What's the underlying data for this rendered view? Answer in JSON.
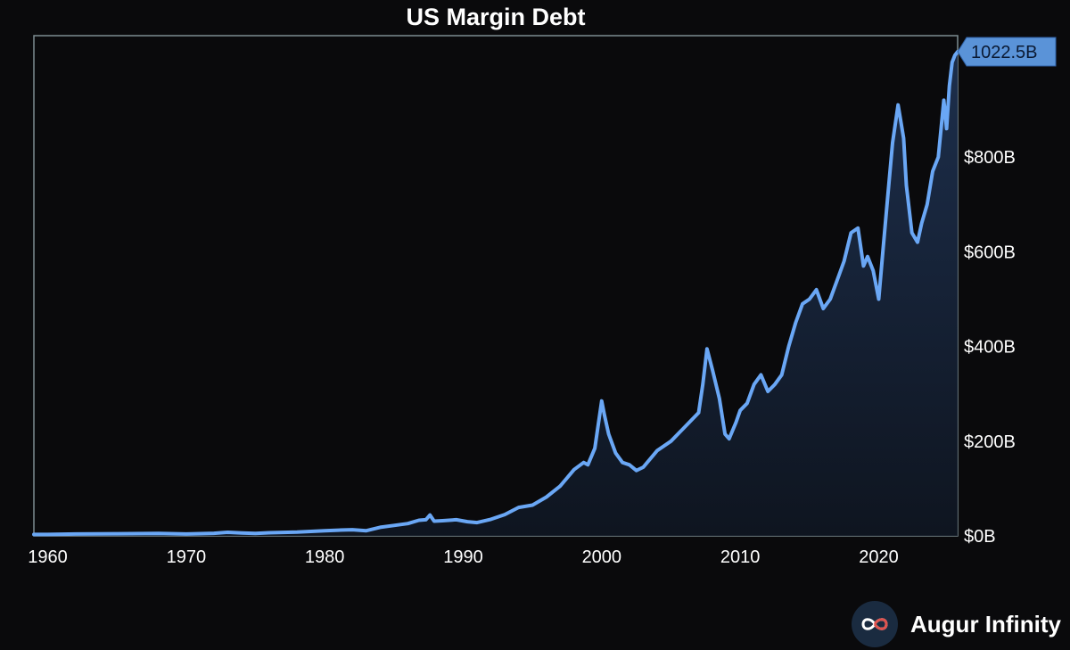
{
  "chart_data": {
    "type": "area",
    "title": "US Margin Debt",
    "xlabel": "",
    "ylabel": "",
    "xlim": [
      1959,
      2025.7
    ],
    "ylim": [
      0,
      1022.5
    ],
    "x_ticks": [
      1960,
      1970,
      1980,
      1990,
      2000,
      2010,
      2020
    ],
    "x_tick_labels": [
      "1960",
      "1970",
      "1980",
      "1990",
      "2000",
      "2010",
      "2020"
    ],
    "y_ticks": [
      0,
      200,
      400,
      600,
      800
    ],
    "y_tick_labels": [
      "$0B",
      "$200B",
      "$400B",
      "$600B",
      "$800B"
    ],
    "y_axis_side": "right",
    "grid": false,
    "legend": "none",
    "last_value_label": "1022.5B",
    "colors": {
      "line": "#6aa7f5",
      "callout": "#5a93d8",
      "background": "#0a0a0c",
      "frame": "#7d8c91"
    },
    "series": [
      {
        "unit": "billion USD",
        "x": [
          1959,
          1960,
          1962,
          1965,
          1968,
          1970,
          1972,
          1973,
          1974,
          1975,
          1976,
          1978,
          1980,
          1981,
          1982,
          1983,
          1984,
          1985,
          1986,
          1986.8,
          1987.3,
          1987.6,
          1987.9,
          1988.5,
          1989.5,
          1990.3,
          1991,
          1992,
          1993,
          1994,
          1995,
          1996,
          1997,
          1998,
          1998.7,
          1999,
          1999.5,
          2000.0,
          2000.2,
          2000.5,
          2001,
          2001.5,
          2002,
          2002.5,
          2003,
          2004,
          2005,
          2006,
          2007,
          2007.3,
          2007.6,
          2008,
          2008.5,
          2008.9,
          2009.2,
          2009.7,
          2010,
          2010.5,
          2011,
          2011.5,
          2012,
          2012.5,
          2013,
          2013.5,
          2014,
          2014.5,
          2015,
          2015.5,
          2016,
          2016.5,
          2017,
          2017.5,
          2018,
          2018.5,
          2018.9,
          2019.2,
          2019.6,
          2020.0,
          2020.3,
          2020.6,
          2021.0,
          2021.4,
          2021.8,
          2022.0,
          2022.4,
          2022.8,
          2023.1,
          2023.5,
          2023.9,
          2024.3,
          2024.7,
          2024.9,
          2025.1,
          2025.3,
          2025.5,
          2025.7
        ],
        "y": [
          3,
          3,
          4,
          4.5,
          5,
          4,
          5.5,
          7.5,
          6,
          5,
          6.5,
          8,
          11,
          12,
          13,
          11,
          18,
          22,
          26,
          33,
          34,
          44,
          31,
          32,
          34,
          30,
          28,
          35,
          45,
          60,
          65,
          82,
          105,
          140,
          155,
          150,
          185,
          285,
          255,
          215,
          175,
          155,
          150,
          138,
          145,
          180,
          200,
          230,
          260,
          320,
          395,
          350,
          290,
          215,
          205,
          240,
          265,
          280,
          320,
          340,
          305,
          320,
          340,
          400,
          450,
          490,
          500,
          520,
          480,
          500,
          540,
          580,
          640,
          650,
          570,
          590,
          560,
          500,
          600,
          700,
          830,
          910,
          840,
          740,
          640,
          620,
          660,
          700,
          770,
          800,
          920,
          860,
          950,
          1000,
          1015,
          1022.5
        ]
      }
    ]
  },
  "brand": {
    "name": "Augur Infinity",
    "logo_icon": "infinity-icon"
  }
}
